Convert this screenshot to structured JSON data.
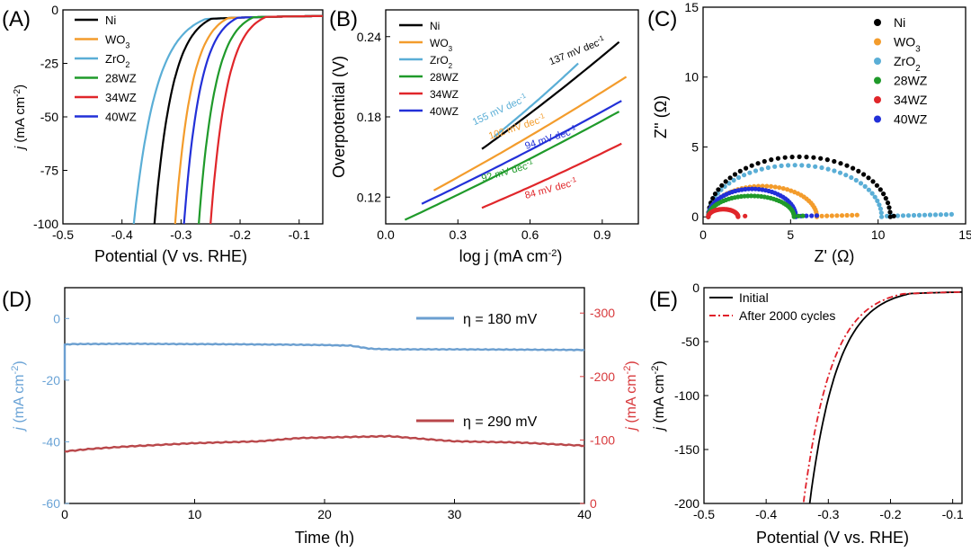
{
  "colors": {
    "Ni": "#000000",
    "WO3": "#f39c2c",
    "ZrO2": "#5aaed6",
    "28WZ": "#1f9a2a",
    "34WZ": "#e0262a",
    "40WZ": "#2230d8",
    "blue_axis": "#6aa3d6",
    "red_axis": "#d8393c",
    "blue_line": "#6b9fd0",
    "red_line": "#b9474a",
    "after_cycles": "#e0202a"
  },
  "chart_data": [
    {
      "panel": "(A)",
      "type": "line",
      "xlabel": "Potential (V vs. RHE)",
      "ylabel_italic": "j",
      "ylabel_rest": " (mA cm",
      "ylabel_sup": "-2",
      "ylabel_end": ")",
      "xlim": [
        -0.5,
        -0.06
      ],
      "ylim": [
        -100,
        0
      ],
      "xticks": [
        "-0.5",
        "-0.4",
        "-0.3",
        "-0.2",
        "-0.1"
      ],
      "yticks": [
        "0",
        "-25",
        "-50",
        "-75",
        "-100"
      ],
      "legend": [
        {
          "name": "Ni",
          "sub": ""
        },
        {
          "name": "WO",
          "sub": "3"
        },
        {
          "name": "ZrO",
          "sub": "2"
        },
        {
          "name": "28WZ",
          "sub": ""
        },
        {
          "name": "34WZ",
          "sub": ""
        },
        {
          "name": "40WZ",
          "sub": ""
        }
      ],
      "series": [
        {
          "name": "ZrO2",
          "onset": -0.38,
          "k": 0.07
        },
        {
          "name": "Ni",
          "onset": -0.345,
          "k": 0.055
        },
        {
          "name": "WO3",
          "onset": -0.31,
          "k": 0.05
        },
        {
          "name": "40WZ",
          "onset": -0.295,
          "k": 0.05
        },
        {
          "name": "28WZ",
          "onset": -0.27,
          "k": 0.05
        },
        {
          "name": "34WZ",
          "onset": -0.25,
          "k": 0.05
        }
      ]
    },
    {
      "panel": "(B)",
      "type": "line",
      "xlabel": "log j (mA cm",
      "xlabel_sup": "-2",
      "xlabel_end": ")",
      "ylabel": "Overpotential (V)",
      "xlim": [
        0.0,
        1.05
      ],
      "ylim": [
        0.1,
        0.26
      ],
      "xticks": [
        "0.0",
        "0.3",
        "0.6",
        "0.9"
      ],
      "yticks": [
        "0.12",
        "0.18",
        "0.24"
      ],
      "legend": [
        {
          "name": "Ni",
          "sub": ""
        },
        {
          "name": "WO",
          "sub": "3"
        },
        {
          "name": "ZrO",
          "sub": "2"
        },
        {
          "name": "28WZ",
          "sub": ""
        },
        {
          "name": "34WZ",
          "sub": ""
        },
        {
          "name": "40WZ",
          "sub": ""
        }
      ],
      "series": [
        {
          "name": "Ni",
          "x": [
            0.4,
            0.97
          ],
          "y": [
            0.156,
            0.236
          ]
        },
        {
          "name": "WO3",
          "x": [
            0.2,
            1.0
          ],
          "y": [
            0.125,
            0.21
          ]
        },
        {
          "name": "ZrO2",
          "x": [
            0.45,
            0.8
          ],
          "y": [
            0.165,
            0.22
          ]
        },
        {
          "name": "28WZ",
          "x": [
            0.08,
            0.97
          ],
          "y": [
            0.103,
            0.184
          ]
        },
        {
          "name": "34WZ",
          "x": [
            0.4,
            0.98
          ],
          "y": [
            0.112,
            0.16
          ]
        },
        {
          "name": "40WZ",
          "x": [
            0.15,
            0.98
          ],
          "y": [
            0.115,
            0.192
          ]
        }
      ],
      "annotations": [
        {
          "text": "155 mV dec",
          "sup": "-1",
          "series": "ZrO2",
          "x": 0.48,
          "y": 0.183,
          "angle": -25
        },
        {
          "text": "137 mV dec",
          "sup": "-1",
          "series": "Ni",
          "x": 0.8,
          "y": 0.227,
          "angle": -22
        },
        {
          "text": "102 mV dec",
          "sup": "-1",
          "series": "WO3",
          "x": 0.55,
          "y": 0.17,
          "angle": -18
        },
        {
          "text": "94 mV dec",
          "sup": "-1",
          "series": "40WZ",
          "x": 0.69,
          "y": 0.162,
          "angle": -18
        },
        {
          "text": "92 mV dec",
          "sup": "-1",
          "series": "28WZ",
          "x": 0.51,
          "y": 0.137,
          "angle": -16
        },
        {
          "text": "84 mV dec",
          "sup": "-1",
          "series": "34WZ",
          "x": 0.69,
          "y": 0.124,
          "angle": -15
        }
      ]
    },
    {
      "panel": "(C)",
      "type": "scatter",
      "xlabel": "Z' (Ω)",
      "ylabel": "Z'' (Ω)",
      "xlim": [
        0,
        15
      ],
      "ylim": [
        -0.5,
        15
      ],
      "xticks": [
        "0",
        "5",
        "10",
        "15"
      ],
      "yticks": [
        "0",
        "5",
        "10",
        "15"
      ],
      "legend": [
        {
          "name": "Ni",
          "sub": ""
        },
        {
          "name": "WO",
          "sub": "3"
        },
        {
          "name": "ZrO",
          "sub": "2"
        },
        {
          "name": "28WZ",
          "sub": ""
        },
        {
          "name": "34WZ",
          "sub": ""
        },
        {
          "name": "40WZ",
          "sub": ""
        }
      ],
      "series": [
        {
          "name": "ZrO2",
          "r0": 0.3,
          "r1": 10.2,
          "peak": 3.7,
          "tail_to": 14.2
        },
        {
          "name": "Ni",
          "r0": 0.3,
          "r1": 10.7,
          "peak": 4.3,
          "tail_to": 10.9
        },
        {
          "name": "WO3",
          "r0": 0.3,
          "r1": 6.5,
          "peak": 2.2,
          "tail_to": 8.8
        },
        {
          "name": "40WZ",
          "r0": 0.3,
          "r1": 5.3,
          "peak": 2.0,
          "tail_to": 6.5
        },
        {
          "name": "28WZ",
          "r0": 0.3,
          "r1": 5.2,
          "peak": 1.5,
          "tail_to": 5.7
        },
        {
          "name": "34WZ",
          "r0": 0.3,
          "r1": 2.0,
          "peak": 0.55,
          "tail_to": 2.4
        }
      ]
    },
    {
      "panel": "(D)",
      "type": "line",
      "xlabel": "Time (h)",
      "left_ylabel_italic": "j",
      "left_ylabel_rest": " (mA cm",
      "left_ylabel_sup": "-2",
      "left_ylabel_end": ")",
      "right_ylabel_italic": "j",
      "right_ylabel_rest": " (mA cm",
      "right_ylabel_sup": "-2",
      "right_ylabel_end": ")",
      "xlim": [
        0,
        40
      ],
      "left_ylim": [
        -60,
        10
      ],
      "right_ylim": [
        0,
        -340
      ],
      "xticks": [
        "0",
        "10",
        "20",
        "30",
        "40"
      ],
      "left_yticks": [
        "0",
        "-20",
        "-40",
        "-60"
      ],
      "right_yticks": [
        "-300",
        "-200",
        "-100",
        "0"
      ],
      "series": [
        {
          "name": "η = 180 mV",
          "axis": "left",
          "x": [
            0,
            0.5,
            5,
            10,
            15,
            20,
            22,
            23.5,
            25,
            30,
            35,
            40
          ],
          "y": [
            -8.5,
            -8.3,
            -8.2,
            -8.3,
            -8.4,
            -8.6,
            -8.8,
            -9.8,
            -10.0,
            -10.0,
            -10.1,
            -10.2
          ]
        },
        {
          "name": "η = 290 mV",
          "axis": "right",
          "x": [
            0,
            2,
            5,
            10,
            15,
            18,
            20,
            25,
            28,
            30,
            35,
            40
          ],
          "y": [
            -82,
            -86,
            -90,
            -95,
            -98,
            -103,
            -104,
            -106,
            -101,
            -98,
            -96,
            -91
          ]
        }
      ]
    },
    {
      "panel": "(E)",
      "type": "line",
      "xlabel": "Potential (V vs. RHE)",
      "ylabel_italic": "j",
      "ylabel_rest": " (mA cm",
      "ylabel_sup": "-2",
      "ylabel_end": ")",
      "xlim": [
        -0.5,
        -0.085
      ],
      "ylim": [
        -200,
        0
      ],
      "xticks": [
        "-0.5",
        "-0.4",
        "-0.3",
        "-0.2",
        "-0.1"
      ],
      "yticks": [
        "0",
        "-50",
        "-100",
        "-150",
        "-200"
      ],
      "series": [
        {
          "name": "Initial",
          "style": "solid",
          "onset": -0.33,
          "k": 0.1
        },
        {
          "name": "After 2000 cycles",
          "style": "dashdot",
          "onset": -0.34,
          "k": 0.1
        }
      ]
    }
  ]
}
